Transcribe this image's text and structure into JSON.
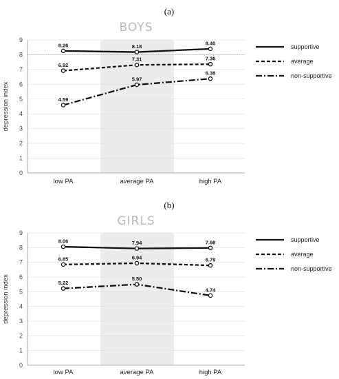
{
  "chart_data": [
    {
      "panel": "(a)",
      "type": "line",
      "title": "BOYS",
      "ylabel": "depression index",
      "xlabel": "",
      "ylim": [
        0,
        9
      ],
      "yticks": [
        0,
        1,
        2,
        3,
        4,
        5,
        6,
        7,
        8,
        9
      ],
      "grid": true,
      "reference_line": 8,
      "highlight_category": "average PA",
      "categories": [
        "low PA",
        "average PA",
        "high PA"
      ],
      "legend_position": "right",
      "series": [
        {
          "name": "supportive",
          "style": "solid",
          "values": [
            8.26,
            8.18,
            8.4
          ],
          "labels": [
            "8.26",
            "8.18",
            "8.40"
          ]
        },
        {
          "name": "average",
          "style": "dashed",
          "values": [
            6.92,
            7.31,
            7.36
          ],
          "labels": [
            "6.92",
            "7.31",
            "7.36"
          ]
        },
        {
          "name": "non-supportive",
          "style": "dashdot",
          "values": [
            4.59,
            5.97,
            6.38
          ],
          "labels": [
            "4.59",
            "5.97",
            "6.38"
          ]
        }
      ]
    },
    {
      "panel": "(b)",
      "type": "line",
      "title": "GIRLS",
      "ylabel": "depression index",
      "xlabel": "",
      "ylim": [
        0,
        9
      ],
      "yticks": [
        0,
        1,
        2,
        3,
        4,
        5,
        6,
        7,
        8,
        9
      ],
      "grid": true,
      "reference_line": null,
      "highlight_category": "average PA",
      "categories": [
        "low PA",
        "average PA",
        "high PA"
      ],
      "legend_position": "right",
      "series": [
        {
          "name": "supportive",
          "style": "solid",
          "values": [
            8.06,
            7.94,
            7.98
          ],
          "labels": [
            "8.06",
            "7.94",
            "7.98"
          ]
        },
        {
          "name": "average",
          "style": "dashed",
          "values": [
            6.85,
            6.94,
            6.79
          ],
          "labels": [
            "6.85",
            "6.94",
            "6.79"
          ]
        },
        {
          "name": "non-supportive",
          "style": "dashdot",
          "values": [
            5.22,
            5.5,
            4.74
          ],
          "labels": [
            "5.22",
            "5.50",
            "4.74"
          ]
        }
      ]
    }
  ],
  "colors": {
    "line": "#111111",
    "grid": "#e2e2e2",
    "highlight": "#ececec",
    "title": "#b9b9b9"
  }
}
